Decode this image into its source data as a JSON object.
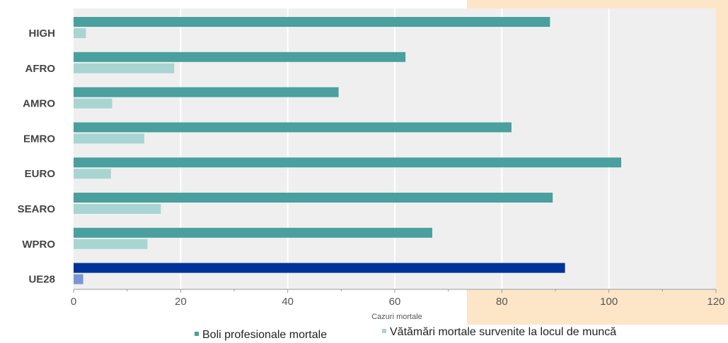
{
  "chart_data": {
    "type": "bar",
    "orientation": "horizontal",
    "categories": [
      "HIGH",
      "AFRO",
      "AMRO",
      "EMRO",
      "EURO",
      "SEARO",
      "WPRO",
      "UE28"
    ],
    "series": [
      {
        "name": "Boli profesionale mortale",
        "values": [
          89.0,
          62.0,
          49.5,
          81.8,
          102.3,
          89.5,
          67.0,
          91.8
        ],
        "color": "#4a9f9f",
        "highlight_color": "#003399"
      },
      {
        "name": "Vătămări mortale survenite la locul de muncă",
        "values": [
          2.3,
          18.8,
          7.2,
          13.2,
          7.0,
          16.3,
          13.8,
          1.8
        ],
        "color": "#a8d5d1",
        "highlight_color": "#7b96d4"
      }
    ],
    "highlight_category": "UE28",
    "xlabel": "Cazuri mortale",
    "xlim": [
      0,
      120
    ],
    "xticks": [
      "0",
      "20",
      "40",
      "60",
      "80",
      "100",
      "120"
    ],
    "grid": "vertical",
    "legend_position": "bottom",
    "colors": {
      "plot_background": "#efefef",
      "gridline": "#ffffff",
      "accent_background": "#fde6c8"
    }
  }
}
